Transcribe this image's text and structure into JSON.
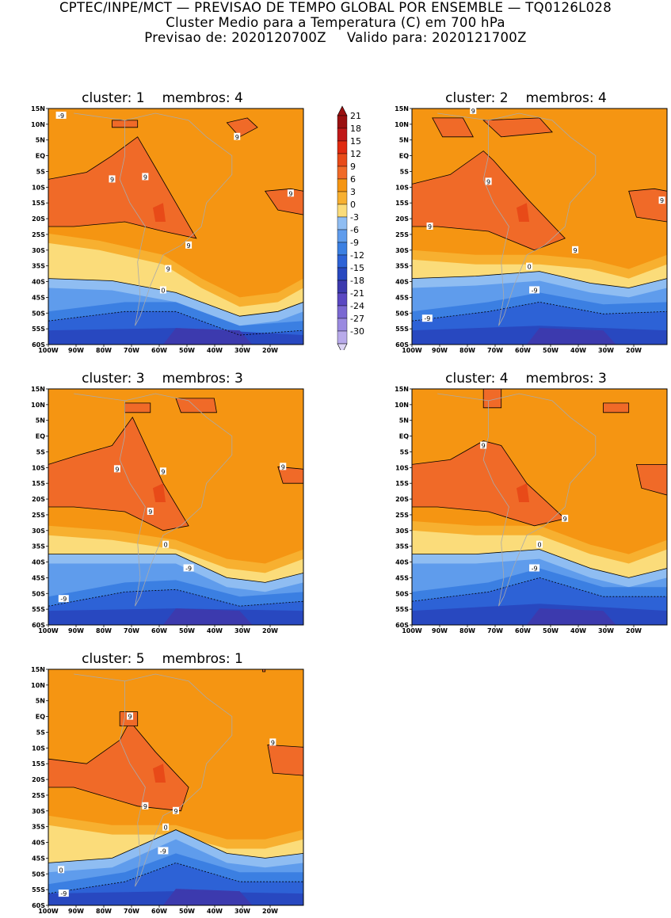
{
  "header": {
    "line1": "CPTEC/INPE/MCT — PREVISAO DE TEMPO GLOBAL POR ENSEMBLE — TQ0126L028",
    "line2": "Cluster Medio para a Temperatura (C) em 700 hPa",
    "line3_left": "Previsao de: 2020120700Z",
    "line3_right": "Valido para: 2020121700Z"
  },
  "axes": {
    "lat_ticks": [
      "15N",
      "10N",
      "5N",
      "EQ",
      "5S",
      "10S",
      "15S",
      "20S",
      "25S",
      "30S",
      "35S",
      "40S",
      "45S",
      "50S",
      "55S",
      "60S"
    ],
    "lon_ticks": [
      "100W",
      "90W",
      "80W",
      "70W",
      "60W",
      "50W",
      "40W",
      "30W",
      "20W"
    ]
  },
  "colorbar": {
    "levels": [
      "21",
      "18",
      "15",
      "12",
      "9",
      "6",
      "3",
      "0",
      "-3",
      "-6",
      "-9",
      "-12",
      "-15",
      "-18",
      "-21",
      "-24",
      "-27",
      "-30"
    ],
    "colors": [
      "#9a1010",
      "#c01818",
      "#e02a10",
      "#e84a18",
      "#f06a28",
      "#f59512",
      "#f7b030",
      "#fbdc7a",
      "#8fbdf2",
      "#5f9cec",
      "#3b7fe2",
      "#2d62d6",
      "#2848c0",
      "#3c3aae",
      "#5a48c2",
      "#7a68d2",
      "#9a8ae0",
      "#b8aaea",
      "#dcd4f4"
    ]
  },
  "clusters": [
    {
      "id": "cluster-1",
      "label": "cluster:",
      "number": "1",
      "members_label": "membros:",
      "members": "4",
      "contour_labels": [
        "9",
        "9",
        "9",
        "9",
        "9",
        "9",
        "0",
        "-9"
      ]
    },
    {
      "id": "cluster-2",
      "label": "cluster:",
      "number": "2",
      "members_label": "membros:",
      "members": "4",
      "contour_labels": [
        "9",
        "9",
        "9",
        "9",
        "9",
        "0",
        "-9",
        "-9"
      ]
    },
    {
      "id": "cluster-3",
      "label": "cluster:",
      "number": "3",
      "members_label": "membros:",
      "members": "3",
      "contour_labels": [
        "9",
        "9",
        "9",
        "9",
        "0",
        "-9",
        "-9"
      ]
    },
    {
      "id": "cluster-4",
      "label": "cluster:",
      "number": "4",
      "members_label": "membros:",
      "members": "3",
      "contour_labels": [
        "9",
        "9",
        "0",
        "-9"
      ]
    },
    {
      "id": "cluster-5",
      "label": "cluster:",
      "number": "5",
      "members_label": "membros:",
      "members": "1",
      "contour_labels": [
        "9",
        "9",
        "9",
        "9",
        "0",
        "0",
        "-9",
        "-9"
      ]
    }
  ]
}
